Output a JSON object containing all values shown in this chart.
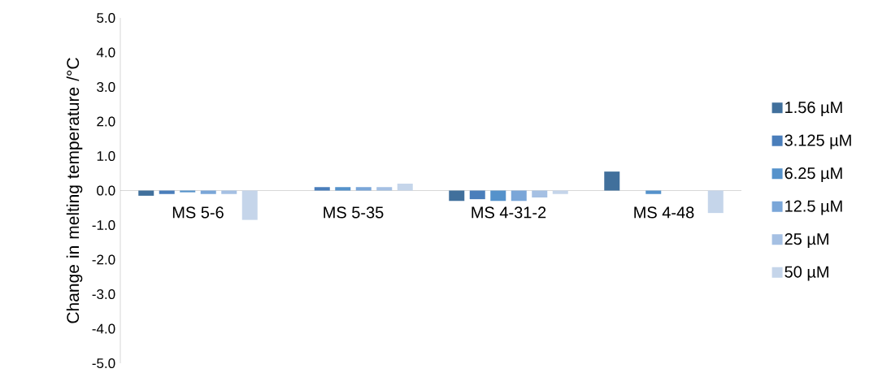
{
  "chart_data": {
    "type": "bar",
    "ylabel": "Change in melting temperature /°C",
    "categories": [
      "MS 5-6",
      "MS 5-35",
      "MS 4-31-2",
      "MS 4-48"
    ],
    "series": [
      {
        "name": "1.56 µM",
        "color": "#41709c",
        "values": [
          -0.15,
          0,
          -0.3,
          0.55
        ]
      },
      {
        "name": "3.125 µM",
        "color": "#4a7ebb",
        "values": [
          -0.1,
          0.1,
          -0.25,
          0
        ]
      },
      {
        "name": "6.25 µM",
        "color": "#5592cb",
        "values": [
          -0.05,
          0.1,
          -0.3,
          -0.1
        ]
      },
      {
        "name": "12.5 µM",
        "color": "#7aa6d8",
        "values": [
          -0.1,
          0.1,
          -0.3,
          0
        ]
      },
      {
        "name": "25 µM",
        "color": "#a5c0e3",
        "values": [
          -0.1,
          0.1,
          -0.2,
          0
        ]
      },
      {
        "name": "50 µM",
        "color": "#c5d5ea",
        "values": [
          -0.85,
          0.2,
          -0.1,
          -0.65
        ]
      }
    ],
    "ylim": [
      -5,
      5
    ],
    "yticks": [
      {
        "value": -5,
        "label": "-5.0"
      },
      {
        "value": -4,
        "label": "-4.0"
      },
      {
        "value": -3,
        "label": "-3.0"
      },
      {
        "value": -2,
        "label": "-2.0"
      },
      {
        "value": -1,
        "label": "-1.0"
      },
      {
        "value": 0,
        "label": "0.0"
      },
      {
        "value": 1,
        "label": "1.0"
      },
      {
        "value": 2,
        "label": "2.0"
      },
      {
        "value": 3,
        "label": "3.0"
      },
      {
        "value": 4,
        "label": "4.0"
      },
      {
        "value": 5,
        "label": "5.0"
      }
    ],
    "grid": false,
    "legend": "right"
  }
}
